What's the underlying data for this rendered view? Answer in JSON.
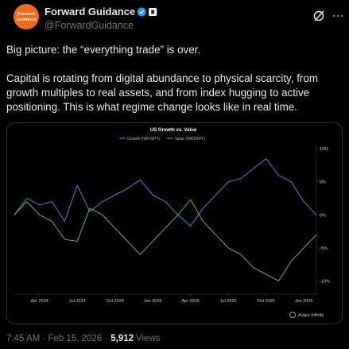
{
  "author": {
    "name": "Forward Guidance",
    "handle": "@ForwardGuidance",
    "avatar_text": [
      "Forward",
      "Guidance"
    ]
  },
  "text": [
    "Big picture: the “everything trade” is over.",
    "Capital is rotating from digital abundance to physical scarcity, from",
    "growth multiples to real assets, and from index hugging to active",
    "positioning. This is what regime change looks like in real time."
  ],
  "chart_data": {
    "type": "line",
    "title": "US Growth vs. Value",
    "source": "Augur Infinity",
    "legend": "top",
    "x": [
      "2024-02",
      "2024-03",
      "2024-04",
      "2024-05",
      "2024-06",
      "2024-07",
      "2024-08",
      "2024-09",
      "2024-10",
      "2024-11",
      "2024-12",
      "2025-01",
      "2025-02",
      "2025-03",
      "2025-04",
      "2025-05",
      "2025-06",
      "2025-07",
      "2025-08",
      "2025-09",
      "2025-10",
      "2025-11",
      "2025-12",
      "2026-01",
      "2026-02"
    ],
    "xlim": [
      "2024-02",
      "2026-02"
    ],
    "xticks": [
      {
        "value": "2024-04",
        "label": "Apr 2024"
      },
      {
        "value": "2024-07",
        "label": "Jul 2024"
      },
      {
        "value": "2024-10",
        "label": "Oct 2024"
      },
      {
        "value": "2025-01",
        "label": "Jan 2025"
      },
      {
        "value": "2025-04",
        "label": "Apr 2025"
      },
      {
        "value": "2025-07",
        "label": "Jul 2025"
      },
      {
        "value": "2025-10",
        "label": "Oct 2025"
      },
      {
        "value": "2026-01",
        "label": "Jan 2026"
      }
    ],
    "ylim": [
      -12,
      10.5
    ],
    "yticks": [
      {
        "value": 10,
        "label": "10%"
      },
      {
        "value": 5,
        "label": "5%"
      },
      {
        "value": 0,
        "label": "0%"
      },
      {
        "value": -5,
        "label": "-5%"
      },
      {
        "value": -10,
        "label": "-10%"
      }
    ],
    "series": [
      {
        "name": "Growth (IWF/SPY)",
        "color": "#4f8fe8",
        "values": [
          0,
          2.5,
          1.5,
          2,
          -1,
          4.5,
          0.5,
          2,
          3,
          4,
          5.3,
          3,
          2,
          0,
          -1.7,
          1,
          3,
          5,
          5.5,
          7,
          8.5,
          6,
          5,
          2,
          0
        ]
      },
      {
        "name": "Value (IWD/SPY)",
        "color": "#7cc43a",
        "values": [
          0,
          2,
          0,
          -1,
          -3.7,
          -4,
          1,
          0,
          -2,
          -4,
          -6,
          -4,
          -2,
          0,
          2.3,
          -1,
          -3,
          -5,
          -6,
          -8,
          -9,
          -10,
          -7,
          -5,
          -3
        ]
      }
    ]
  },
  "footer": {
    "timestamp": "7:45 AM · Feb 15, 2026 ·",
    "views": "5,912",
    "views_label": "Views"
  }
}
